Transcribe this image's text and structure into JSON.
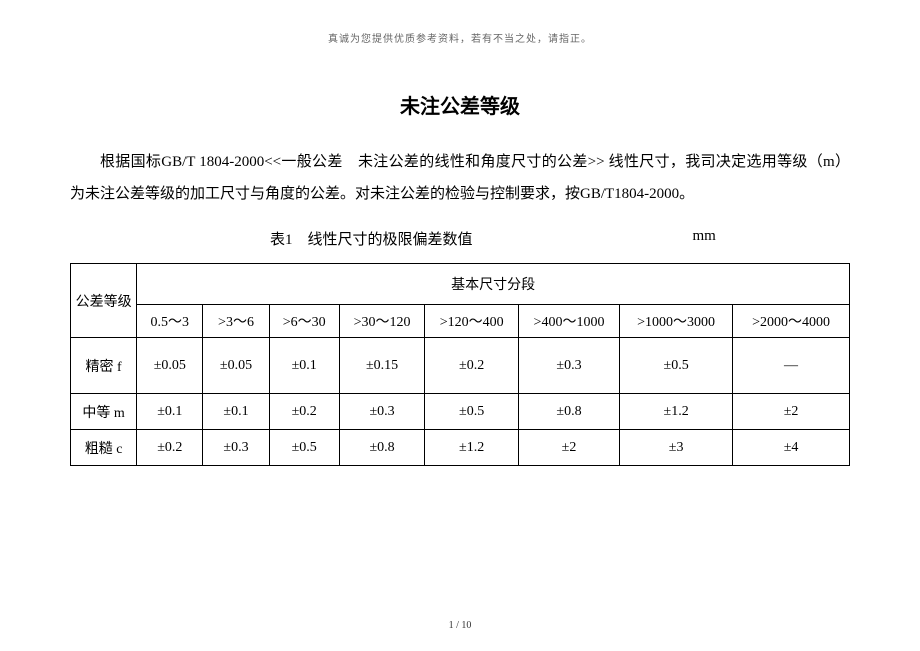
{
  "headerNote": "真诚为您提供优质参考资料，若有不当之处，请指正。",
  "title": "未注公差等级",
  "paragraph": "根据国标GB/T 1804-2000<<一般公差　未注公差的线性和角度尺寸的公差>> 线性尺寸，我司决定选用等级（m）为未注公差等级的加工尺寸与角度的公差。对未注公差的检验与控制要求，按GB/T1804-2000。",
  "tableCaption": "表1　线性尺寸的极限偏差数值",
  "tableUnit": "mm",
  "table": {
    "cornerHeader": "公差等级",
    "groupHeader": "基本尺寸分段",
    "ranges": [
      "0.5～3",
      ">3～6",
      ">6～30",
      ">30～120",
      ">120～400",
      ">400～1000",
      ">1000～3000",
      ">2000～4000"
    ],
    "rows": [
      {
        "label": "精密 f",
        "cells": [
          "±0.05",
          "±0.05",
          "±0.1",
          "±0.15",
          "±0.2",
          "±0.3",
          "±0.5",
          "—"
        ]
      },
      {
        "label": "中等 m",
        "cells": [
          "±0.1",
          "±0.1",
          "±0.2",
          "±0.3",
          "±0.5",
          "±0.8",
          "±1.2",
          "±2"
        ]
      },
      {
        "label": "粗糙 c",
        "cells": [
          "±0.2",
          "±0.3",
          "±0.5",
          "±0.8",
          "±1.2",
          "±2",
          "±3",
          "±4"
        ]
      }
    ]
  },
  "footer": "1 / 10"
}
